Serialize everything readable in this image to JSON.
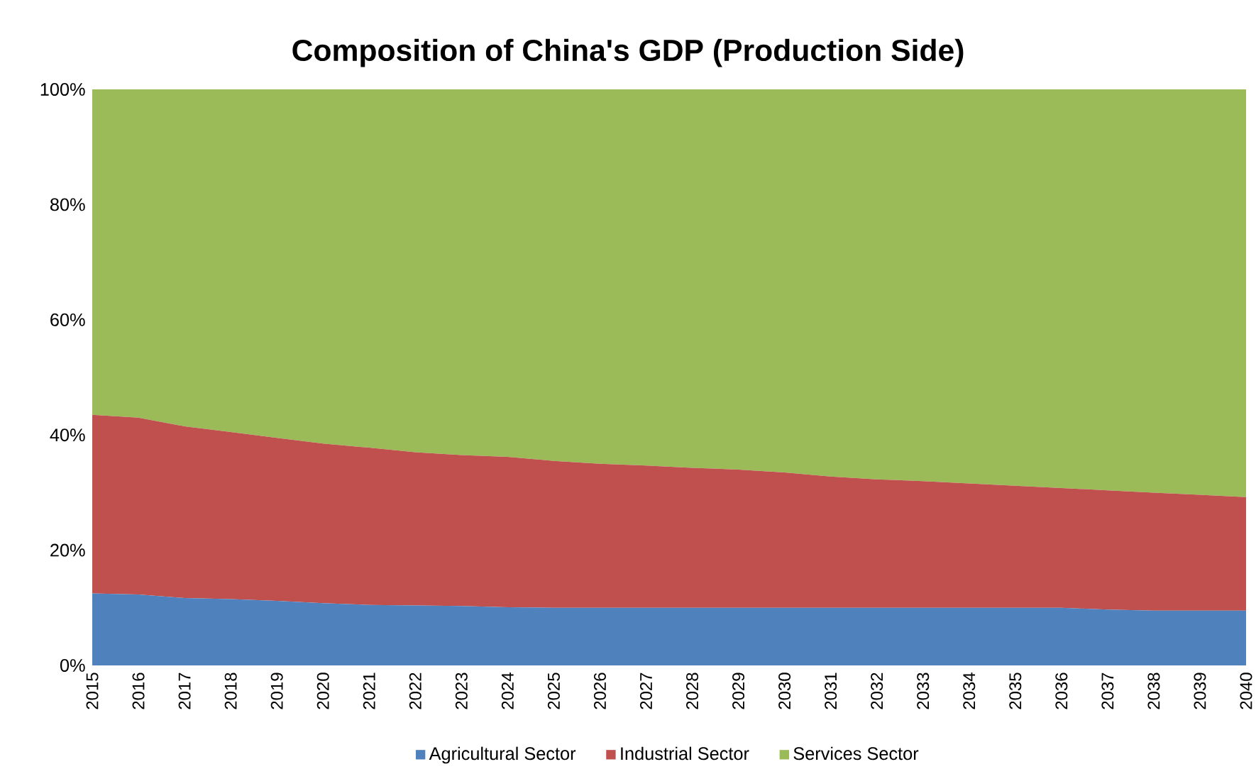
{
  "chart_data": {
    "type": "area",
    "title": "Composition of China's GDP (Production Side)",
    "stacked": true,
    "legend": "bottom",
    "categories": [
      "2015",
      "2016",
      "2017",
      "2018",
      "2019",
      "2020",
      "2021",
      "2022",
      "2023",
      "2024",
      "2025",
      "2026",
      "2027",
      "2028",
      "2029",
      "2030",
      "2031",
      "2032",
      "2033",
      "2034",
      "2035",
      "2036",
      "2037",
      "2038",
      "2039",
      "2040"
    ],
    "ylim": [
      0,
      100
    ],
    "yticks": [
      {
        "value": 0,
        "label": "0%"
      },
      {
        "value": 20,
        "label": "20%"
      },
      {
        "value": 40,
        "label": "40%"
      },
      {
        "value": 60,
        "label": "60%"
      },
      {
        "value": 80,
        "label": "80%"
      },
      {
        "value": 100,
        "label": "100%"
      }
    ],
    "series": [
      {
        "name": "Agricultural Sector",
        "color": "#4f81bd",
        "values": [
          12.5,
          12.3,
          11.7,
          11.5,
          11.2,
          10.8,
          10.5,
          10.4,
          10.3,
          10.1,
          10,
          10,
          10,
          10,
          10,
          10,
          10,
          10,
          10,
          10,
          10,
          10,
          9.7,
          9.5,
          9.5,
          9.5
        ]
      },
      {
        "name": "Industrial Sector",
        "color": "#c0504d",
        "values": [
          31,
          30.7,
          29.8,
          29,
          28.3,
          27.7,
          27.3,
          26.6,
          26.2,
          26.1,
          25.5,
          25,
          24.7,
          24.3,
          24,
          23.5,
          22.8,
          22.3,
          22,
          21.6,
          21.2,
          20.8,
          20.7,
          20.5,
          20.1,
          19.7
        ]
      },
      {
        "name": "Services Sector",
        "color": "#9bbb59",
        "values": [
          56.5,
          57,
          58.5,
          59.5,
          60.5,
          61.5,
          62.2,
          63,
          63.5,
          63.8,
          64.5,
          65,
          65.3,
          65.7,
          66,
          66.5,
          67.2,
          67.7,
          68,
          68.4,
          68.8,
          69.2,
          69.6,
          70,
          70.4,
          70.8
        ]
      }
    ]
  }
}
